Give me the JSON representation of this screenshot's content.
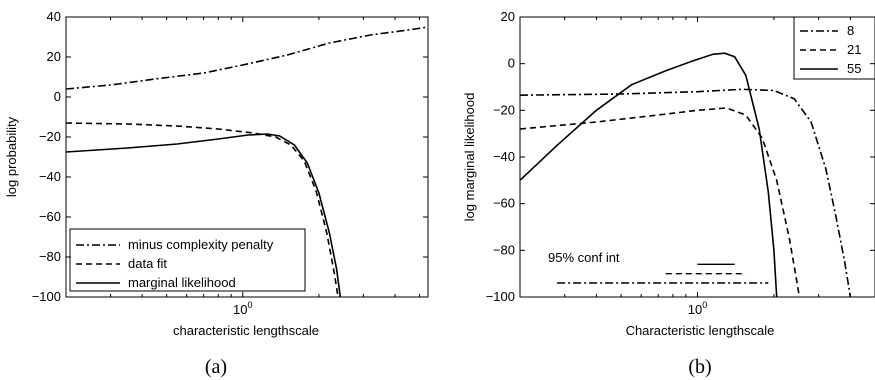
{
  "chart_data": [
    {
      "type": "line",
      "caption": "(a)",
      "xlabel": "characteristic lengthscale",
      "ylabel": "log probability",
      "xscale": "log",
      "xlim": [
        0.2,
        5.4
      ],
      "ylim": [
        -100,
        40
      ],
      "xticks": [
        {
          "value": 1,
          "label": "10^0"
        }
      ],
      "yticks": [
        -100,
        -80,
        -60,
        -40,
        -20,
        0,
        20,
        40
      ],
      "legend": {
        "placement": "bottom-left"
      },
      "series": [
        {
          "name": "minus complexity penalty",
          "dash": "dashdot",
          "points": [
            [
              0.2,
              4
            ],
            [
              0.3,
              6
            ],
            [
              0.45,
              9
            ],
            [
              0.7,
              12
            ],
            [
              1.0,
              16
            ],
            [
              1.5,
              21
            ],
            [
              2.2,
              27
            ],
            [
              3.2,
              31
            ],
            [
              4.5,
              33.5
            ],
            [
              5.4,
              35
            ]
          ]
        },
        {
          "name": "data fit",
          "dash": "dashed",
          "points": [
            [
              0.2,
              -13
            ],
            [
              0.35,
              -13.5
            ],
            [
              0.55,
              -14.5
            ],
            [
              0.8,
              -16
            ],
            [
              1.1,
              -18
            ],
            [
              1.35,
              -20
            ],
            [
              1.55,
              -24
            ],
            [
              1.75,
              -32
            ],
            [
              1.95,
              -47
            ],
            [
              2.15,
              -68
            ],
            [
              2.3,
              -88
            ],
            [
              2.38,
              -100
            ]
          ]
        },
        {
          "name": "marginal likelihood",
          "dash": "solid",
          "points": [
            [
              0.2,
              -27.5
            ],
            [
              0.35,
              -25.5
            ],
            [
              0.55,
              -23.5
            ],
            [
              0.8,
              -21
            ],
            [
              1.05,
              -19
            ],
            [
              1.25,
              -18.5
            ],
            [
              1.4,
              -19.5
            ],
            [
              1.6,
              -24
            ],
            [
              1.8,
              -33
            ],
            [
              2.0,
              -48
            ],
            [
              2.2,
              -68
            ],
            [
              2.35,
              -86
            ],
            [
              2.43,
              -100
            ]
          ]
        }
      ]
    },
    {
      "type": "line",
      "caption": "(b)",
      "xlabel": "Characteristic lengthscale",
      "ylabel": "log marginal likelihood",
      "xscale": "log",
      "xlim": [
        0.2,
        5.0
      ],
      "ylim": [
        -100,
        20
      ],
      "xticks": [
        {
          "value": 1,
          "label": "10^0"
        }
      ],
      "yticks": [
        -100,
        -80,
        -60,
        -40,
        -20,
        0,
        20
      ],
      "legend": {
        "placement": "top-right"
      },
      "annotation": "95% conf int",
      "series": [
        {
          "name": "8",
          "dash": "dashdot",
          "points": [
            [
              0.2,
              -13.5
            ],
            [
              0.5,
              -13
            ],
            [
              1.0,
              -12
            ],
            [
              1.5,
              -11
            ],
            [
              2.0,
              -11.5
            ],
            [
              2.4,
              -15
            ],
            [
              2.8,
              -25
            ],
            [
              3.2,
              -45
            ],
            [
              3.5,
              -65
            ],
            [
              3.8,
              -85
            ],
            [
              4.0,
              -100
            ]
          ]
        },
        {
          "name": "21",
          "dash": "dashed",
          "points": [
            [
              0.2,
              -28
            ],
            [
              0.4,
              -25
            ],
            [
              0.7,
              -22
            ],
            [
              1.0,
              -20
            ],
            [
              1.3,
              -19
            ],
            [
              1.55,
              -22
            ],
            [
              1.8,
              -32
            ],
            [
              2.05,
              -50
            ],
            [
              2.3,
              -75
            ],
            [
              2.45,
              -92
            ],
            [
              2.52,
              -100
            ]
          ]
        },
        {
          "name": "55",
          "dash": "solid",
          "points": [
            [
              0.2,
              -50
            ],
            [
              0.28,
              -35
            ],
            [
              0.4,
              -20
            ],
            [
              0.55,
              -9
            ],
            [
              0.75,
              -3
            ],
            [
              0.95,
              1
            ],
            [
              1.15,
              4
            ],
            [
              1.28,
              4.5
            ],
            [
              1.4,
              3
            ],
            [
              1.55,
              -5
            ],
            [
              1.75,
              -28
            ],
            [
              1.9,
              -55
            ],
            [
              2.0,
              -80
            ],
            [
              2.05,
              -100
            ]
          ]
        }
      ],
      "conf_intervals": [
        {
          "series": "55",
          "x_from": 1.0,
          "x_to": 1.4,
          "y": -86
        },
        {
          "series": "21",
          "x_from": 0.75,
          "x_to": 1.55,
          "y": -90
        },
        {
          "series": "8",
          "x_from": 0.28,
          "x_to": 1.9,
          "y": -94
        }
      ]
    }
  ]
}
